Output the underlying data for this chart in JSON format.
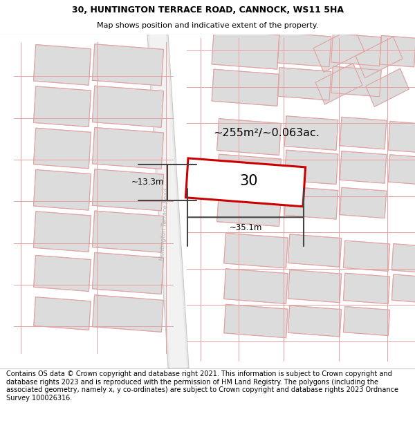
{
  "title_line1": "30, HUNTINGTON TERRACE ROAD, CANNOCK, WS11 5HA",
  "title_line2": "Map shows position and indicative extent of the property.",
  "footer_text": "Contains OS data © Crown copyright and database right 2021. This information is subject to Crown copyright and database rights 2023 and is reproduced with the permission of HM Land Registry. The polygons (including the associated geometry, namely x, y co-ordinates) are subject to Crown copyright and database rights 2023 Ordnance Survey 100026316.",
  "area_label": "~255m²/~0.063ac.",
  "number_label": "30",
  "width_label": "~35.1m",
  "height_label": "~13.3m",
  "road_label": "Huntington Terrace Road",
  "map_bg": "#f7f7f7",
  "building_fill": "#dcdcdc",
  "building_ec": "#c8c8c8",
  "road_fill": "#efefef",
  "road_edge": "#d0d0d0",
  "property_fill": "#ffffff",
  "property_stroke": "#cc0000",
  "dim_line_color": "#444444",
  "pink_line_color": "#e8a0a0",
  "road_label_color": "#b0b0b0",
  "title_fontsize": 9.0,
  "subtitle_fontsize": 8.0,
  "footer_fontsize": 7.0
}
